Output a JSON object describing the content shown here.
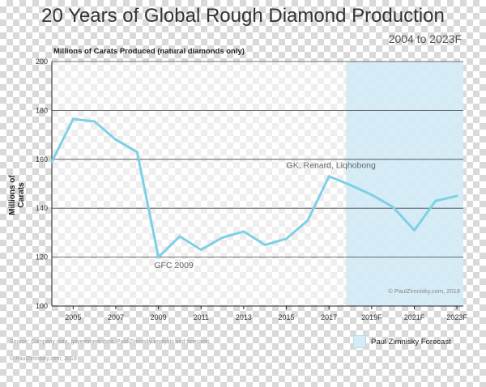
{
  "colors": {
    "line": "#7fd0e6",
    "forecast_fill": "#cfe9f5",
    "grid": "#444444",
    "axis": "#222222"
  },
  "chart_data": {
    "type": "line",
    "title": "20 Years of Global Rough Diamond Production",
    "subtitle": "2004 to 2023F",
    "unit_label": "Millions of Carats Produced (natural diamonds only)",
    "ylabel": "Millions of Carats",
    "xlabel": "",
    "ylim": [
      100,
      200
    ],
    "yticks": [
      100,
      120,
      140,
      160,
      180,
      200
    ],
    "xlim": [
      2004,
      2023.3
    ],
    "xtick_labels": [
      {
        "x": 2005,
        "label": "2005"
      },
      {
        "x": 2007,
        "label": "2007"
      },
      {
        "x": 2009,
        "label": "2009"
      },
      {
        "x": 2011,
        "label": "2011"
      },
      {
        "x": 2013,
        "label": "2013"
      },
      {
        "x": 2015,
        "label": "2015"
      },
      {
        "x": 2017,
        "label": "2017"
      },
      {
        "x": 2019,
        "label": "2019F"
      },
      {
        "x": 2021,
        "label": "2021F"
      },
      {
        "x": 2023,
        "label": "2023F"
      }
    ],
    "series": [
      {
        "name": "Rough Diamond Production",
        "x": [
          2004,
          2005,
          2006,
          2007,
          2008,
          2009,
          2010,
          2011,
          2012,
          2013,
          2014,
          2015,
          2016,
          2017,
          2018,
          2019,
          2020,
          2021,
          2022,
          2023
        ],
        "values": [
          159,
          176.5,
          175.5,
          168,
          163,
          120,
          128.5,
          123,
          128,
          130.5,
          125,
          127.5,
          135,
          153,
          149.5,
          145.5,
          140.5,
          131,
          143,
          145
        ]
      }
    ],
    "forecast_region": {
      "from": 2017.8,
      "to": 2023.3
    },
    "annotations": [
      {
        "x": 2008.8,
        "y": 115.5,
        "text": "GFC 2009"
      },
      {
        "x": 2015,
        "y": 156.5,
        "text": "GK, Renard, Liqhobong"
      }
    ],
    "watermark": "© PaulZimnisky.com, 2018",
    "legend": {
      "label": "Paul Zimnisky Forecast",
      "position": "bottom-right"
    },
    "source": "Source: Company data, government data, Paul Zimnisky analysis and forecasts.",
    "copyright": "© PaulZimnisky.com, 2018"
  }
}
